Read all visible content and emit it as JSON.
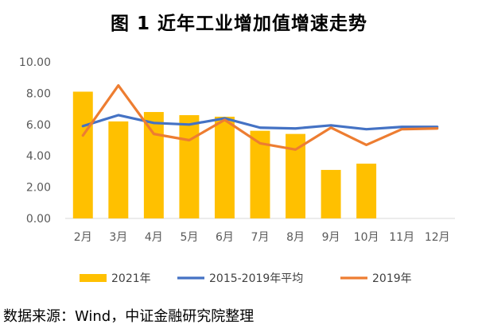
{
  "title": "图 1  近年工业增加值增速走势",
  "source": "数据来源：Wind，中证金融研究院整理",
  "chart_data": {
    "type": "bar",
    "title": "图 1  近年工业增加值增速走势",
    "categories": [
      "2月",
      "3月",
      "4月",
      "5月",
      "6月",
      "7月",
      "8月",
      "9月",
      "10月",
      "11月",
      "12月"
    ],
    "ylim": [
      0,
      10
    ],
    "yticks": [
      "0.00",
      "2.00",
      "4.00",
      "6.00",
      "8.00",
      "10.00"
    ],
    "grid": false,
    "legend_position": "bottom",
    "series": [
      {
        "name": "2021年",
        "type": "bar",
        "color": "#FFC000",
        "values": [
          8.1,
          6.2,
          6.8,
          6.6,
          6.5,
          5.6,
          5.4,
          3.1,
          3.5,
          null,
          null
        ]
      },
      {
        "name": "2015-2019年平均",
        "type": "line",
        "color": "#4472C4",
        "values": [
          5.9,
          6.6,
          6.1,
          6.0,
          6.4,
          5.8,
          5.75,
          5.95,
          5.7,
          5.85,
          5.85
        ]
      },
      {
        "name": "2019年",
        "type": "line",
        "color": "#ED7D31",
        "values": [
          5.3,
          8.5,
          5.4,
          5.0,
          6.3,
          4.8,
          4.4,
          5.8,
          4.7,
          5.7,
          5.75
        ]
      }
    ]
  }
}
